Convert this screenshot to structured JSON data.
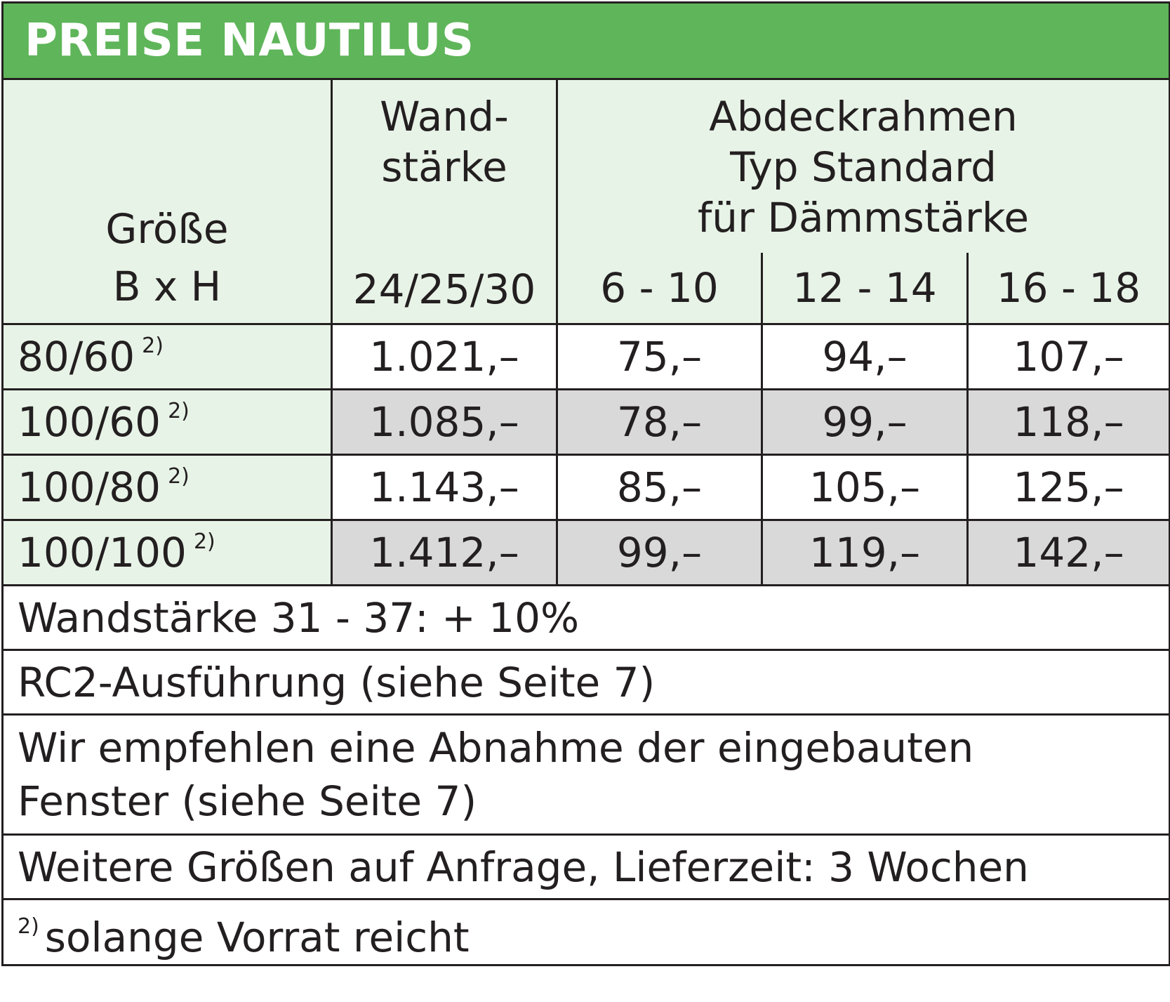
{
  "title": "PREISE NAUTILUS",
  "header": {
    "size_label_line1": "Größe",
    "size_label_line2": "B x H",
    "wall_label_line1": "Wand-",
    "wall_label_line2": "stärke",
    "wall_value": "24/25/30",
    "frame_label_line1": "Abdeckrahmen",
    "frame_label_line2": "Typ Standard",
    "frame_label_line3": "für Dämmstärke",
    "frame_ranges": [
      "6 - 10",
      "12 - 14",
      "16 - 18"
    ]
  },
  "rows": [
    {
      "size": "80/60",
      "note_mark": "2)",
      "wall_price": "1.021,–",
      "frame_prices": [
        "75,–",
        "94,–",
        "107,–"
      ]
    },
    {
      "size": "100/60",
      "note_mark": "2)",
      "wall_price": "1.085,–",
      "frame_prices": [
        "78,–",
        "99,–",
        "118,–"
      ]
    },
    {
      "size": "100/80",
      "note_mark": "2)",
      "wall_price": "1.143,–",
      "frame_prices": [
        "85,–",
        "105,–",
        "125,–"
      ]
    },
    {
      "size": "100/100",
      "note_mark": "2)",
      "wall_price": "1.412,–",
      "frame_prices": [
        "99,–",
        "119,–",
        "142,–"
      ]
    }
  ],
  "notes": {
    "wall_surcharge": "Wandstärke 31 - 37: + 10%",
    "rc2": "RC2-Ausführung (siehe Seite 7)",
    "recommend_line1": "Wir empfehlen eine Abnahme der eingebauten",
    "recommend_line2": "Fenster (siehe Seite 7)",
    "more_sizes": "Weitere Größen auf Anfrage, Lieferzeit: 3 Wochen",
    "footnote_mark": "2)",
    "footnote_text": "solange Vorrat reicht"
  },
  "colors": {
    "title_bg": "#5fb55a",
    "header_bg": "#e8f3e7",
    "alt_row_bg": "#d9d9d9",
    "border": "#231f20"
  }
}
